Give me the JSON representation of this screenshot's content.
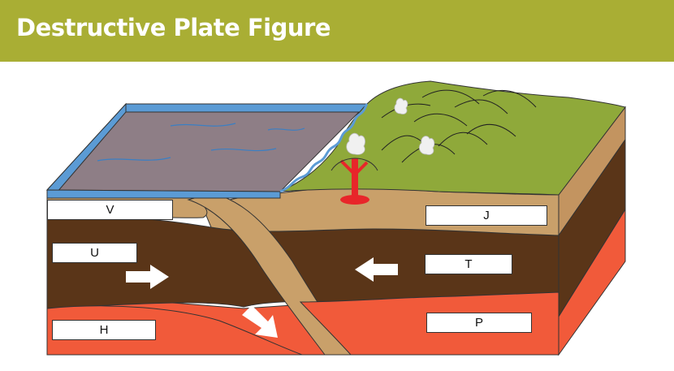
{
  "header": {
    "title": "Destructive Plate Figure"
  },
  "labels": {
    "v": "V",
    "u": "U",
    "h": "H",
    "j": "J",
    "t": "T",
    "p": "P"
  },
  "colors": {
    "header": "#a9ae34",
    "ocean": "#8e7e86",
    "ocean_edge": "#5b9bd5",
    "land": "#8fa93a",
    "crust": "#c9a06a",
    "mantle": "#5a3518",
    "asthenosphere": "#f15a3a",
    "magma": "#e8262a"
  }
}
